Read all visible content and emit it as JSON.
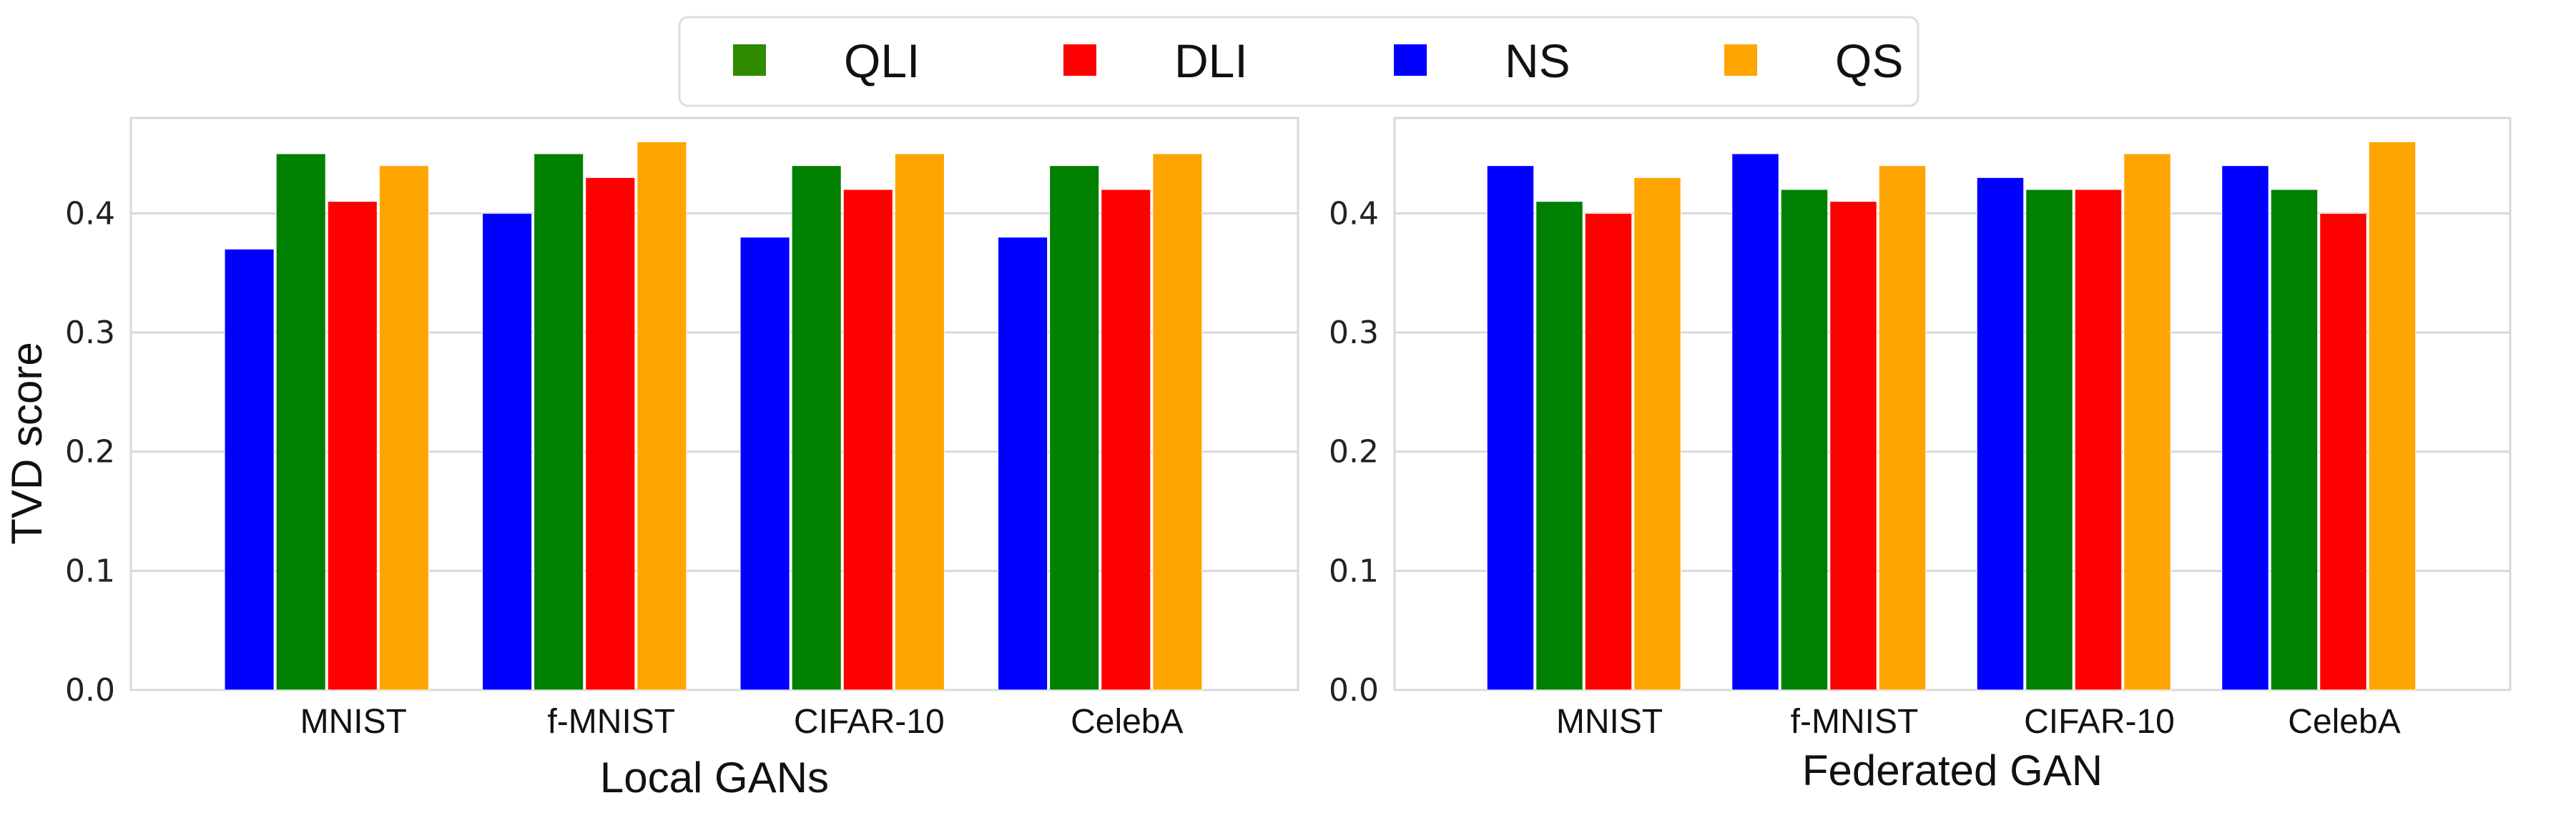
{
  "chart_data": [
    {
      "type": "bar",
      "xlabel": "Local GANs",
      "ylabel": "TVD score",
      "ylim": [
        0,
        0.48
      ],
      "yticks": [
        "0.0",
        "0.1",
        "0.2",
        "0.3",
        "0.4"
      ],
      "grid": true,
      "categories": [
        "MNIST",
        "f-MNIST",
        "CIFAR-10",
        "CelebA"
      ],
      "series": [
        {
          "name": "NS",
          "color": "#0000ff",
          "values": [
            0.37,
            0.4,
            0.38,
            0.38
          ]
        },
        {
          "name": "QLI",
          "color": "#008000",
          "values": [
            0.45,
            0.45,
            0.44,
            0.44
          ]
        },
        {
          "name": "DLI",
          "color": "#ff0000",
          "values": [
            0.41,
            0.43,
            0.42,
            0.42
          ]
        },
        {
          "name": "QS",
          "color": "#ffa500",
          "values": [
            0.44,
            0.46,
            0.45,
            0.45
          ]
        }
      ]
    },
    {
      "type": "bar",
      "xlabel": "Federated GAN",
      "ylabel": "",
      "ylim": [
        0,
        0.48
      ],
      "yticks": [
        "0.0",
        "0.1",
        "0.2",
        "0.3",
        "0.4"
      ],
      "grid": true,
      "categories": [
        "MNIST",
        "f-MNIST",
        "CIFAR-10",
        "CelebA"
      ],
      "series": [
        {
          "name": "NS",
          "color": "#0000ff",
          "values": [
            0.44,
            0.45,
            0.43,
            0.44
          ]
        },
        {
          "name": "QLI",
          "color": "#008000",
          "values": [
            0.41,
            0.42,
            0.42,
            0.42
          ]
        },
        {
          "name": "DLI",
          "color": "#ff0000",
          "values": [
            0.4,
            0.41,
            0.42,
            0.4
          ]
        },
        {
          "name": "QS",
          "color": "#ffa500",
          "values": [
            0.43,
            0.44,
            0.45,
            0.46
          ]
        }
      ]
    }
  ],
  "legend": {
    "placement": "top-center",
    "items": [
      {
        "label": "QLI",
        "color": "#2e8b00"
      },
      {
        "label": "DLI",
        "color": "#ff0000"
      },
      {
        "label": "NS",
        "color": "#0000ff"
      },
      {
        "label": "QS",
        "color": "#ffa500"
      }
    ]
  }
}
